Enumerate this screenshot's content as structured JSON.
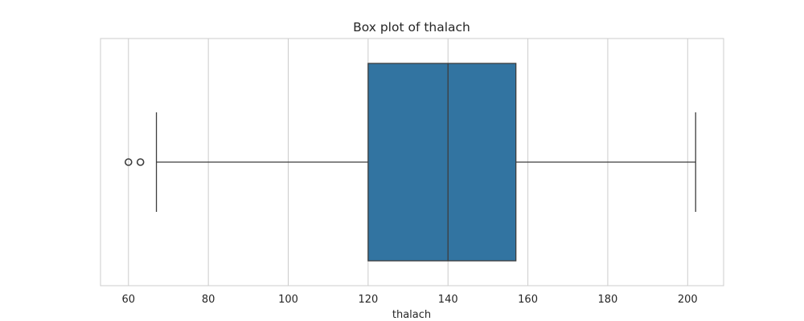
{
  "chart_data": {
    "type": "box",
    "title": "Box plot of thalach",
    "xlabel": "thalach",
    "ylabel": "",
    "xlim": [
      53,
      209
    ],
    "xticks": [
      60,
      80,
      100,
      120,
      140,
      160,
      180,
      200
    ],
    "xtick_labels": [
      "60",
      "80",
      "100",
      "120",
      "140",
      "160",
      "180",
      "200"
    ],
    "grid": true,
    "box": {
      "whisker_low": 67,
      "q1": 120,
      "median": 140,
      "q3": 157,
      "whisker_high": 202,
      "outliers": [
        60,
        63
      ]
    },
    "colors": {
      "box_fill": "#3274a1",
      "line": "#3d3d3d",
      "grid": "#cccccc",
      "frame": "#cccccc"
    }
  }
}
